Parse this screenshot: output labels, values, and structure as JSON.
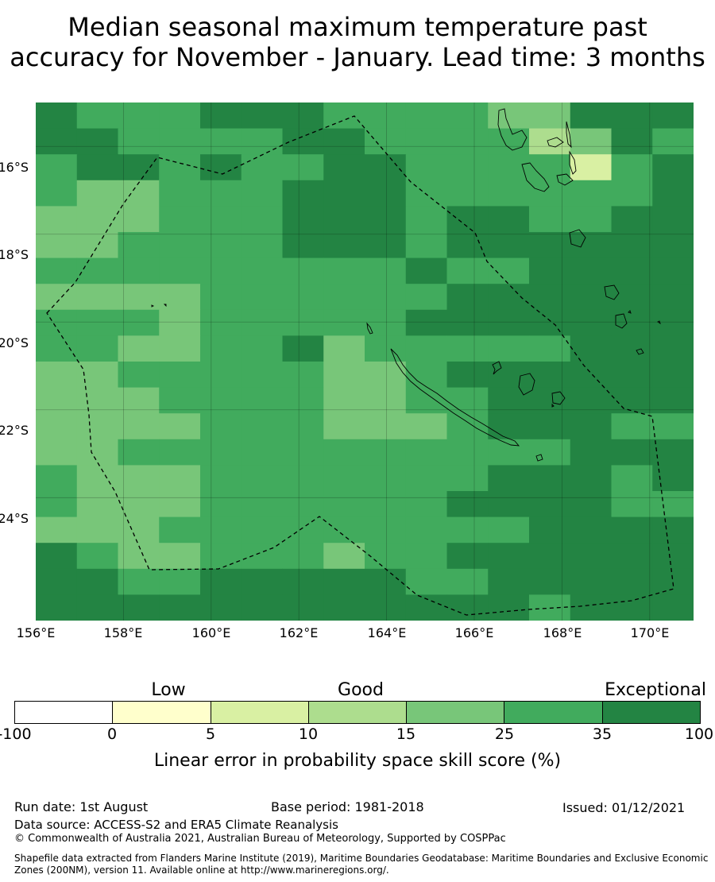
{
  "title": {
    "line1": "Median seasonal maximum temperature past",
    "line2": "accuracy for November - January. Lead time: 3 months"
  },
  "map": {
    "lon_range": [
      156,
      171
    ],
    "lat_range": [
      -26.8,
      -15.0
    ],
    "grid_step_deg": 0.833,
    "x_ticks": [
      "156°E",
      "158°E",
      "160°E",
      "162°E",
      "164°E",
      "166°E",
      "168°E",
      "170°E"
    ],
    "y_ticks": [
      "16°S",
      "18°S",
      "20°S",
      "22°S",
      "24°S"
    ],
    "eez_boundary_color": "#000000",
    "coastline_color": "#000000"
  },
  "grid": {
    "rows": [
      "6555666555544666",
      "6655556655553465",
      "5665655665555256",
      "5445556665555556",
      "4445556665665566",
      "4455556665666666",
      "5555555556556666",
      "4444555555666666",
      "5554555556666666",
      "5544556455555666",
      "4455555445666666",
      "4445555445566666",
      "4444555444566655",
      "4455555555555666",
      "5444555555566656",
      "5444555555666655",
      "4445555555556666",
      "6544555455666666",
      "6655666665566666",
      "6666666666665666"
    ]
  },
  "legend": {
    "category_labels": [
      "Low",
      "Good",
      "Exceptional"
    ],
    "bins": [
      {
        "range": "-100 to 0",
        "color": "#ffffff"
      },
      {
        "range": "0 to 5",
        "color": "#ffffcc"
      },
      {
        "range": "5 to 10",
        "color": "#d9f0a3"
      },
      {
        "range": "10 to 15",
        "color": "#addd8e"
      },
      {
        "range": "15 to 25",
        "color": "#78c679"
      },
      {
        "range": "25 to 35",
        "color": "#41ab5d"
      },
      {
        "range": "35 to 100",
        "color": "#238443"
      }
    ],
    "ticks": [
      "-100",
      "0",
      "5",
      "10",
      "15",
      "25",
      "35",
      "100"
    ],
    "label": "Linear error in probability space skill score (%)"
  },
  "footer": {
    "run_date": "Run date: 1st August",
    "base_period": "Base period: 1981-2018",
    "issued": "Issued: 01/12/2021",
    "data_source": "Data source: ACCESS-S2 and ERA5 Climate Reanalysis",
    "copyright": "© Commonwealth of Australia 2021, Australian Bureau of Meteorology, Supported by COSPPac",
    "shapefile_line1": "Shapefile data extracted from Flanders Marine Institute (2019), Maritime Boundaries Geodatabase: Maritime Boundaries and Exclusive Economic",
    "shapefile_line2": "Zones (200NM), version 11. Available online at http://www.marineregions.org/."
  }
}
